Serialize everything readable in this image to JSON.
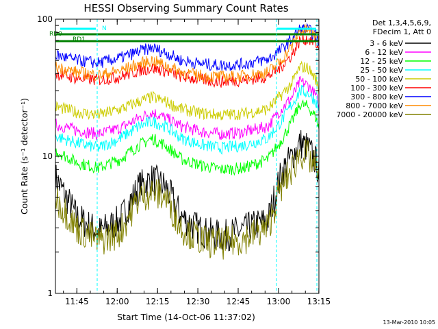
{
  "chart_data": {
    "type": "line",
    "title": "HESSI Observing Summary Count Rates",
    "xlabel": "Start Time (14-Oct-06 11:37:02)",
    "ylabel": "Count Rate (s⁻¹ detector⁻¹)",
    "x_ticks": [
      "11:45",
      "12:00",
      "12:15",
      "12:30",
      "12:45",
      "13:00",
      "13:15"
    ],
    "x_range_min": [
      0,
      98
    ],
    "y_scale": "log",
    "y_range": [
      1,
      100
    ],
    "y_ticks": [
      "1",
      "10",
      "100"
    ],
    "legend_header": [
      "Det 1,3,4,5,6,9,",
      "FDecim 1, Att 0"
    ],
    "legend_position": "top-right, outside plot",
    "series": [
      {
        "name": "3 - 6 keV",
        "color": "#000000",
        "x": [
          0,
          8,
          16,
          24,
          31,
          36,
          41,
          47,
          55,
          62,
          70,
          79,
          84,
          88,
          91,
          94,
          97,
          98
        ],
        "y": [
          7.0,
          3.6,
          2.8,
          3.4,
          6.0,
          6.8,
          6.0,
          3.6,
          2.8,
          2.6,
          2.9,
          3.4,
          7.5,
          10.0,
          12.5,
          11.5,
          9.0,
          7.5
        ]
      },
      {
        "name": "6 - 12 keV",
        "color": "#ff00ff",
        "x": [
          0,
          8,
          16,
          24,
          31,
          36,
          41,
          47,
          55,
          62,
          70,
          79,
          84,
          88,
          91,
          94,
          97,
          98
        ],
        "y": [
          17.0,
          15.5,
          14.5,
          16.0,
          19.0,
          21.0,
          19.0,
          16.5,
          15.0,
          14.5,
          15.0,
          16.5,
          22.0,
          27.0,
          35.0,
          33.0,
          27.0,
          23.0
        ]
      },
      {
        "name": "12 - 25 keV",
        "color": "#00ff00",
        "x": [
          0,
          8,
          16,
          24,
          31,
          36,
          41,
          47,
          55,
          62,
          70,
          79,
          84,
          88,
          91,
          94,
          97,
          98
        ],
        "y": [
          11.0,
          9.0,
          8.2,
          9.5,
          12.0,
          13.5,
          12.0,
          9.5,
          8.5,
          8.0,
          8.2,
          9.5,
          13.0,
          18.0,
          24.0,
          23.0,
          19.0,
          16.0
        ]
      },
      {
        "name": "25 - 50 keV",
        "color": "#00ffff",
        "x": [
          0,
          8,
          16,
          24,
          31,
          36,
          41,
          47,
          55,
          62,
          70,
          79,
          84,
          88,
          91,
          94,
          97,
          98
        ],
        "y": [
          14.0,
          12.5,
          11.5,
          13.5,
          16.5,
          18.0,
          16.5,
          13.5,
          12.0,
          11.5,
          12.0,
          13.5,
          18.0,
          24.0,
          30.0,
          29.0,
          25.0,
          22.0
        ]
      },
      {
        "name": "50 - 100 keV",
        "color": "#cccc00",
        "x": [
          0,
          8,
          16,
          24,
          31,
          36,
          41,
          47,
          55,
          62,
          70,
          79,
          84,
          88,
          91,
          94,
          97,
          98
        ],
        "y": [
          23.0,
          21.0,
          20.0,
          22.0,
          25.0,
          27.0,
          25.0,
          22.0,
          20.5,
          20.0,
          20.5,
          22.0,
          28.0,
          34.0,
          45.0,
          44.0,
          36.0,
          30.0
        ]
      },
      {
        "name": "100 - 300 keV",
        "color": "#ff0000",
        "x": [
          0,
          8,
          16,
          24,
          31,
          36,
          41,
          47,
          55,
          62,
          70,
          79,
          84,
          88,
          91,
          94,
          97,
          98
        ],
        "y": [
          40.0,
          37.0,
          36.0,
          38.0,
          42.0,
          44.0,
          42.0,
          38.0,
          36.0,
          35.0,
          36.0,
          38.0,
          45.0,
          55.0,
          70.0,
          72.0,
          66.0,
          60.0
        ]
      },
      {
        "name": "300 - 800 keV",
        "color": "#0000ff",
        "x": [
          0,
          8,
          16,
          24,
          31,
          36,
          41,
          47,
          55,
          62,
          70,
          79,
          84,
          88,
          91,
          94,
          97,
          98
        ],
        "y": [
          55.0,
          50.0,
          48.0,
          52.0,
          58.0,
          62.0,
          57.0,
          50.0,
          47.0,
          46.0,
          47.0,
          51.0,
          60.0,
          72.0,
          85.0,
          84.0,
          75.0,
          68.0
        ]
      },
      {
        "name": "800 - 7000 keV",
        "color": "#ff8c00",
        "x": [
          0,
          8,
          16,
          24,
          31,
          36,
          41,
          47,
          55,
          62,
          70,
          79,
          84,
          88,
          91,
          94,
          97,
          98
        ],
        "y": [
          45.0,
          41.0,
          39.0,
          42.0,
          47.0,
          50.0,
          46.0,
          41.0,
          38.5,
          38.0,
          38.5,
          41.0,
          50.0,
          64.0,
          82.0,
          84.0,
          76.0,
          70.0
        ]
      },
      {
        "name": "7000 - 20000 keV",
        "color": "#808000",
        "x": [
          0,
          8,
          16,
          24,
          31,
          36,
          41,
          47,
          55,
          62,
          70,
          79,
          84,
          88,
          91,
          94,
          97,
          98
        ],
        "y": [
          5.0,
          3.0,
          2.4,
          2.8,
          5.0,
          5.5,
          5.0,
          3.0,
          2.4,
          2.3,
          2.5,
          3.0,
          6.0,
          8.0,
          10.5,
          10.0,
          8.0,
          6.5
        ]
      }
    ],
    "annotations": [
      "RD0",
      "RD1",
      "N"
    ]
  },
  "footer": {
    "timestamp": "13-Mar-2010 10:05"
  }
}
